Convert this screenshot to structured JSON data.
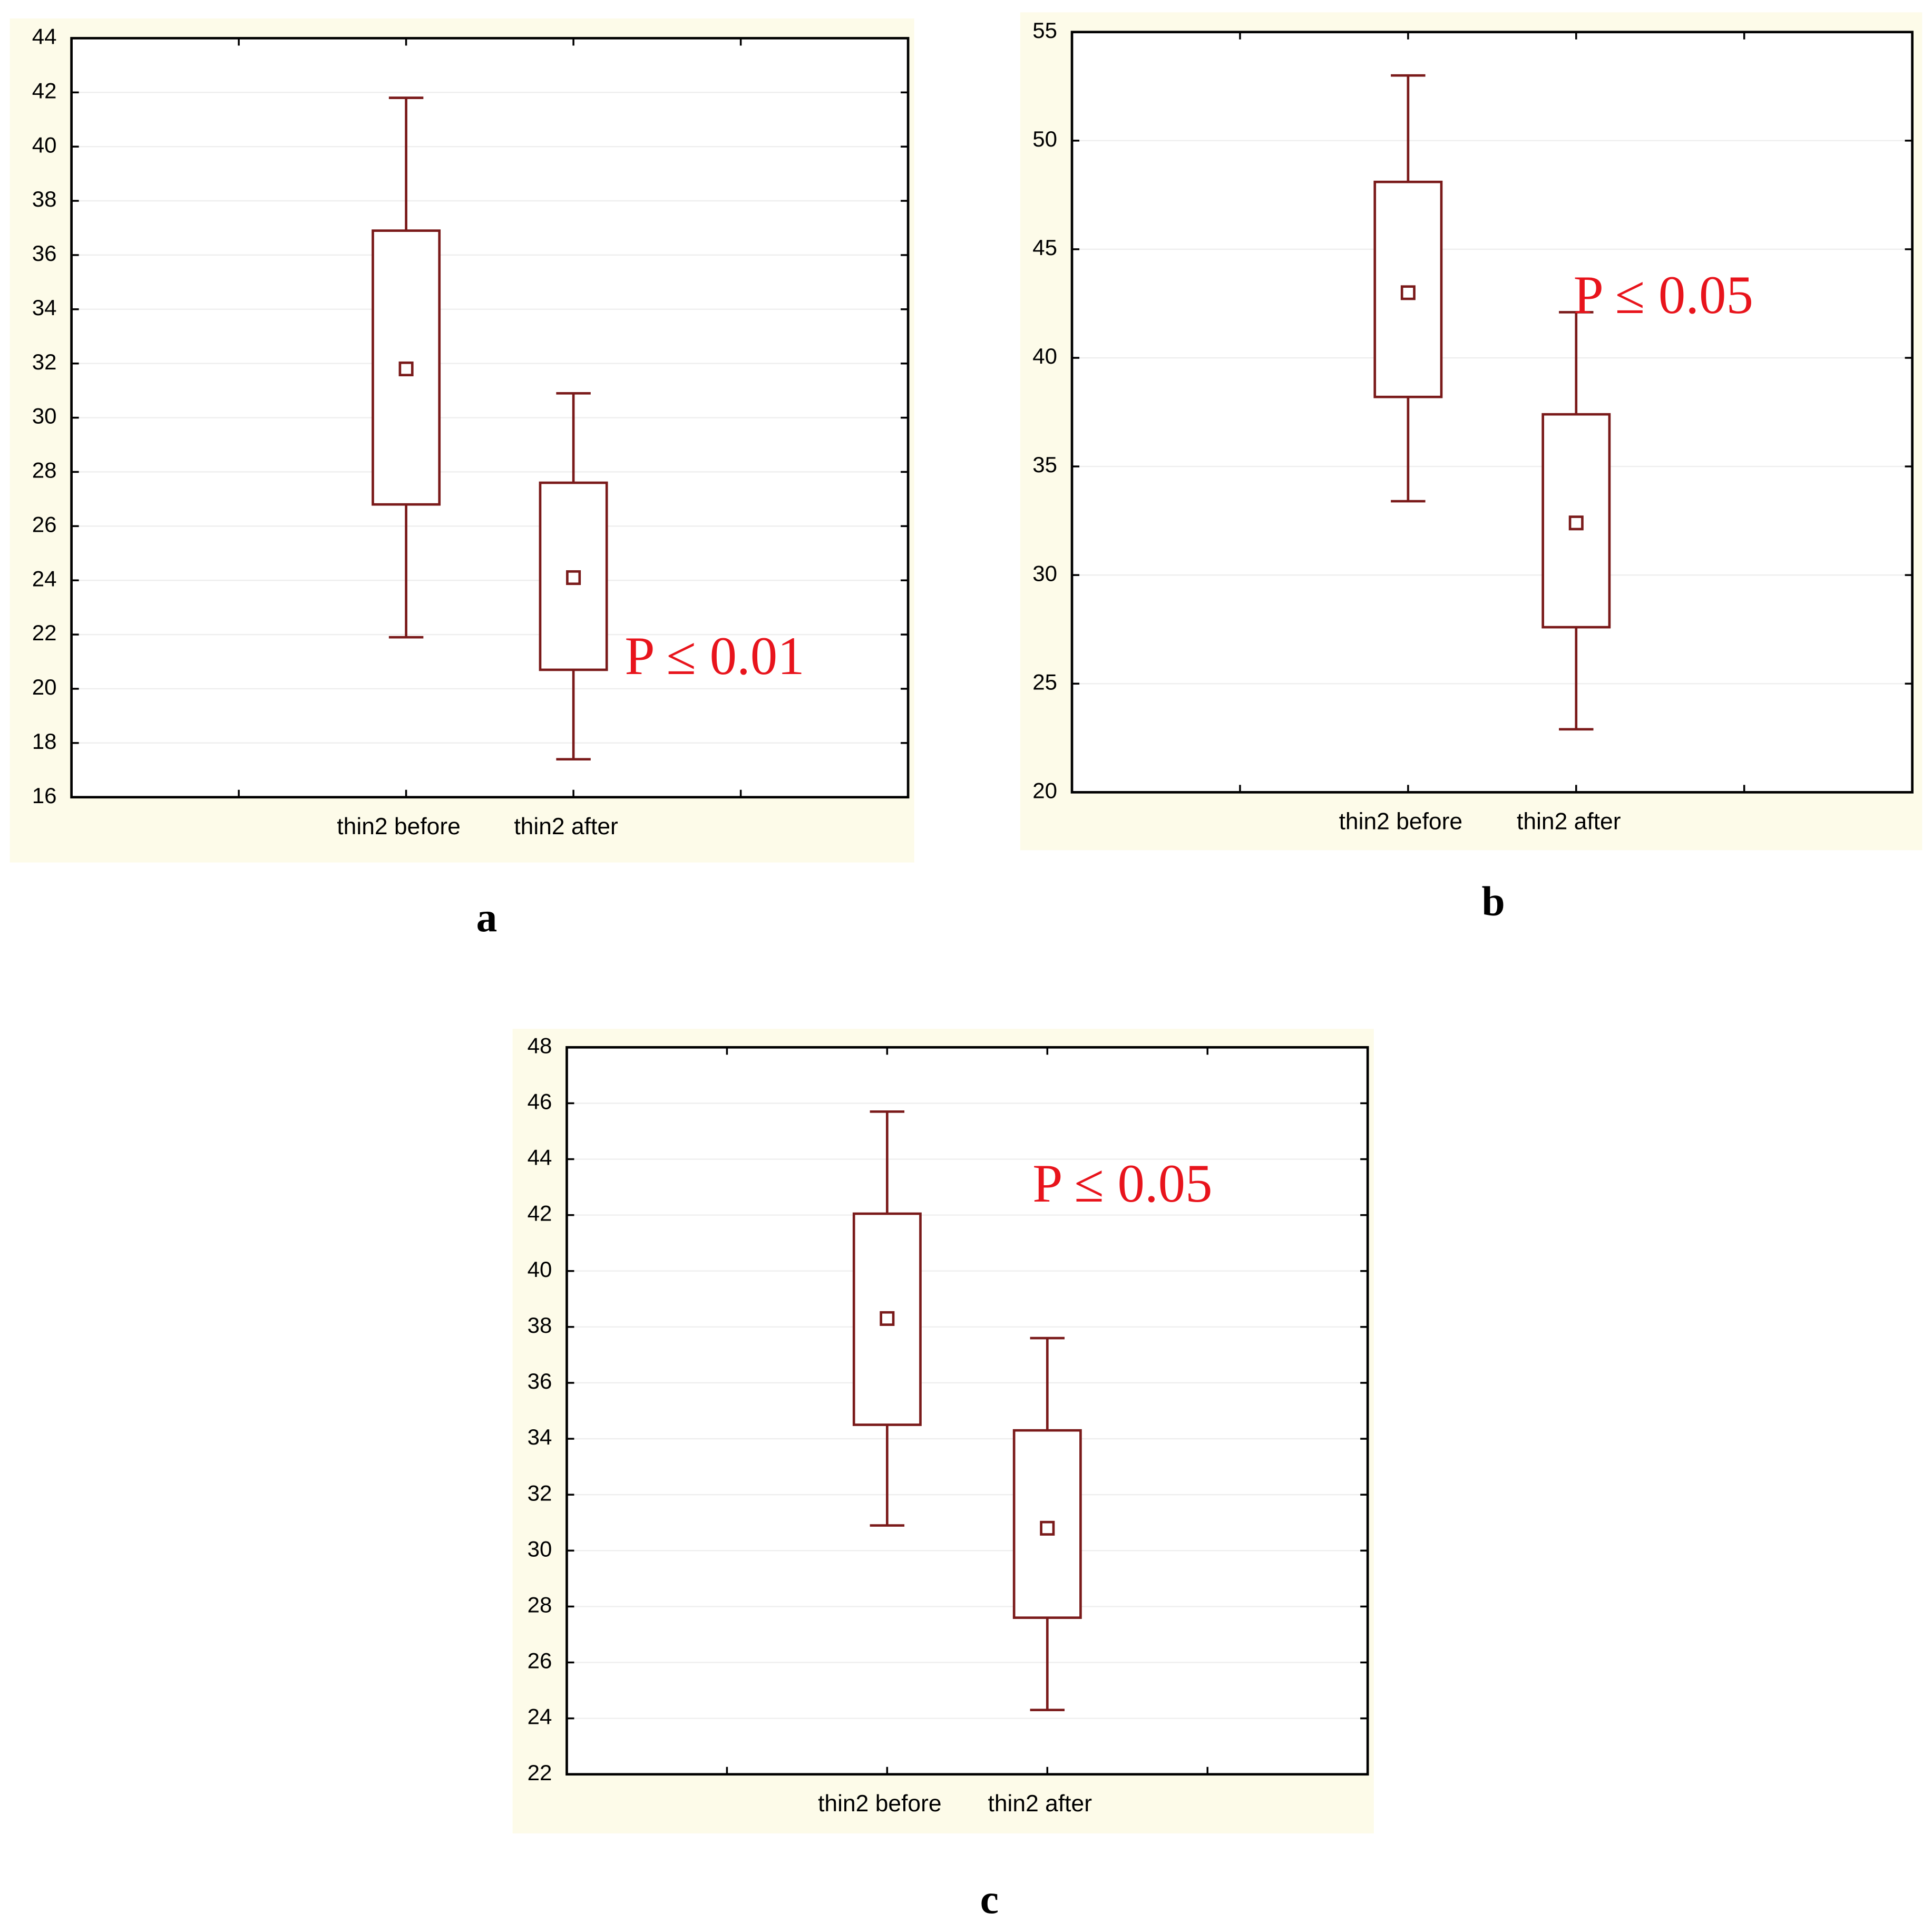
{
  "chart_data": [
    {
      "type": "box",
      "label": "a",
      "annotation": "P ≤ 0.01",
      "color": "#7a1a1a",
      "grid": true,
      "categories": [
        "thin2 before",
        "thin2 after"
      ],
      "boxes": [
        {
          "min": 21.9,
          "q1": 26.8,
          "mean": 31.8,
          "q3": 36.9,
          "max": 41.8
        },
        {
          "min": 17.4,
          "q1": 20.7,
          "mean": 24.1,
          "q3": 27.6,
          "max": 30.9
        }
      ],
      "ylim": [
        16,
        44
      ],
      "yticks": [
        16,
        18,
        20,
        22,
        24,
        26,
        28,
        30,
        32,
        34,
        36,
        38,
        40,
        42,
        44
      ]
    },
    {
      "type": "box",
      "label": "b",
      "annotation": "P ≤ 0.05",
      "color": "#7a1a1a",
      "grid": true,
      "categories": [
        "thin2 before",
        "thin2 after"
      ],
      "boxes": [
        {
          "min": 33.4,
          "q1": 38.2,
          "mean": 43.0,
          "q3": 48.1,
          "max": 53.0
        },
        {
          "min": 22.9,
          "q1": 27.6,
          "mean": 32.4,
          "q3": 37.4,
          "max": 42.1
        }
      ],
      "ylim": [
        20,
        55
      ],
      "yticks": [
        20,
        25,
        30,
        35,
        40,
        45,
        50,
        55
      ]
    },
    {
      "type": "box",
      "label": "c",
      "annotation": "P ≤ 0.05",
      "color": "#7a1a1a",
      "grid": true,
      "categories": [
        "thin2 before",
        "thin2 after"
      ],
      "boxes": [
        {
          "min": 30.9,
          "q1": 34.5,
          "mean": 38.3,
          "q3": 42.05,
          "max": 45.7
        },
        {
          "min": 24.3,
          "q1": 27.6,
          "mean": 30.8,
          "q3": 34.3,
          "max": 37.6
        }
      ],
      "ylim": [
        22,
        48
      ],
      "yticks": [
        22,
        24,
        26,
        28,
        30,
        32,
        34,
        36,
        38,
        40,
        42,
        44,
        46,
        48
      ]
    }
  ]
}
